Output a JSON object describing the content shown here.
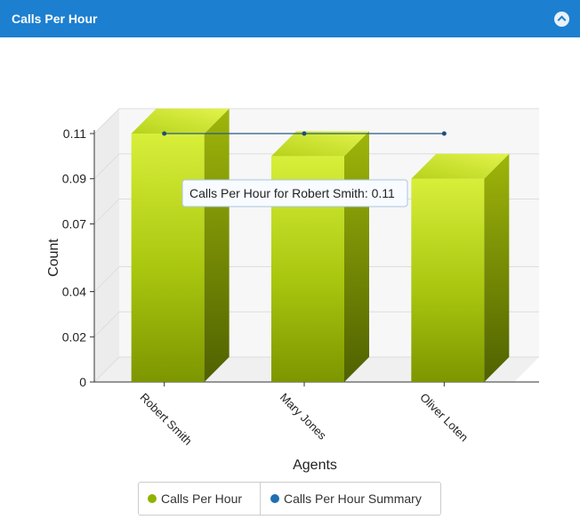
{
  "header": {
    "title": "Calls Per Hour"
  },
  "legend": {
    "items": [
      {
        "label": "Calls Per Hour",
        "color": "#8fb300"
      },
      {
        "label": "Calls Per Hour Summary",
        "color": "#1f6fb2"
      }
    ]
  },
  "tooltip": {
    "text": "Calls Per Hour for Robert Smith: 0.11"
  },
  "chart_data": {
    "type": "bar",
    "title": "",
    "xlabel": "Agents",
    "ylabel": "Count",
    "categories": [
      "Robert Smith",
      "Mary Jones",
      "Oliver Loten"
    ],
    "series": [
      {
        "name": "Calls Per Hour",
        "values": [
          0.11,
          0.1,
          0.09
        ]
      },
      {
        "name": "Calls Per Hour Summary",
        "values": [
          0.11,
          0.11,
          0.11
        ]
      }
    ],
    "yticks": [
      0,
      0.02,
      0.04,
      0.07,
      0.09,
      0.11
    ],
    "ylim": [
      0,
      0.11
    ],
    "grid": true,
    "legend_position": "bottom"
  }
}
